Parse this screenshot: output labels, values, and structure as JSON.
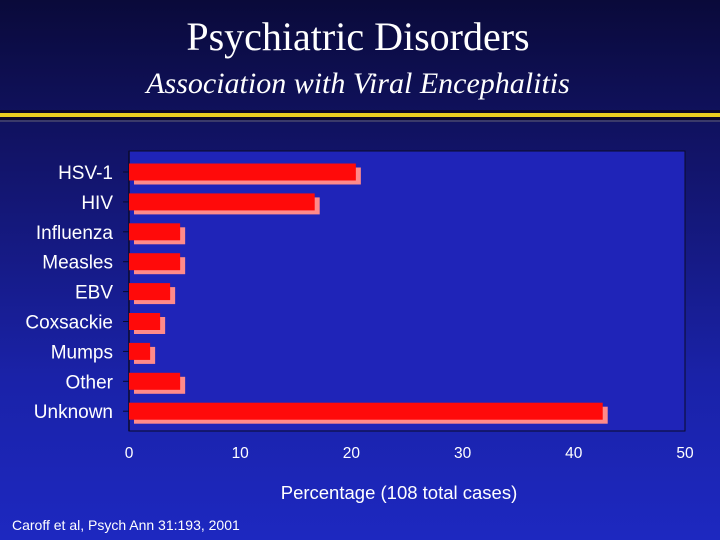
{
  "slide": {
    "title": "Psychiatric Disorders",
    "subtitle": "Association with Viral Encephalitis",
    "citation": "Caroff et al, Psych Ann 31:193, 2001"
  },
  "colors": {
    "background": "#1a22a8",
    "plot_area": "#1f24b8",
    "bar": "#ff0a0a",
    "bar_shadow": "#ff8a8a",
    "divider_gold": "#e8d020",
    "text": "#ffffff"
  },
  "chart_data": {
    "type": "bar",
    "orientation": "horizontal",
    "categories": [
      "HSV-1",
      "HIV",
      "Influenza",
      "Measles",
      "EBV",
      "Coxsackie",
      "Mumps",
      "Other",
      "Unknown"
    ],
    "values": [
      20.4,
      16.7,
      4.6,
      4.6,
      3.7,
      2.8,
      1.9,
      4.6,
      42.6
    ],
    "xlabel": "Percentage (108 total cases)",
    "xlim": [
      0,
      50
    ],
    "xticks": [
      "0",
      "10",
      "20",
      "30",
      "40",
      "50"
    ],
    "grid": false,
    "legend": "none"
  }
}
